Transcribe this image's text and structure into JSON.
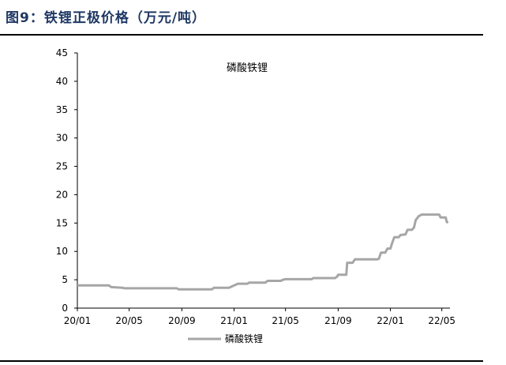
{
  "figure": {
    "title": "图9：铁锂正极价格（万元/吨）"
  },
  "chart_data": {
    "type": "line",
    "annotation": "磷酸铁锂",
    "ylim": [
      0,
      45
    ],
    "y_ticks": [
      0,
      5,
      10,
      15,
      20,
      25,
      30,
      35,
      40,
      45
    ],
    "x_tick_labels": [
      "20/01",
      "20/05",
      "20/09",
      "21/01",
      "21/05",
      "21/09",
      "22/01",
      "22/05"
    ],
    "legend": {
      "position": "bottom-left"
    },
    "grid": false,
    "series": [
      {
        "name": "磷酸铁锂",
        "color": "#a6a6a6",
        "points": [
          [
            "2020-01-01",
            4.0
          ],
          [
            "2020-03-15",
            4.0
          ],
          [
            "2020-03-20",
            3.7
          ],
          [
            "2020-04-15",
            3.6
          ],
          [
            "2020-04-20",
            3.5
          ],
          [
            "2020-08-20",
            3.5
          ],
          [
            "2020-08-25",
            3.3
          ],
          [
            "2020-11-10",
            3.3
          ],
          [
            "2020-11-15",
            3.6
          ],
          [
            "2020-12-20",
            3.6
          ],
          [
            "2021-01-01",
            4.0
          ],
          [
            "2021-01-10",
            4.3
          ],
          [
            "2021-02-01",
            4.3
          ],
          [
            "2021-02-05",
            4.5
          ],
          [
            "2021-03-15",
            4.5
          ],
          [
            "2021-03-20",
            4.8
          ],
          [
            "2021-04-20",
            4.8
          ],
          [
            "2021-04-25",
            5.0
          ],
          [
            "2021-05-01",
            5.1
          ],
          [
            "2021-07-01",
            5.1
          ],
          [
            "2021-07-05",
            5.3
          ],
          [
            "2021-08-25",
            5.3
          ],
          [
            "2021-08-30",
            5.6
          ],
          [
            "2021-09-01",
            5.9
          ],
          [
            "2021-09-20",
            5.9
          ],
          [
            "2021-09-22",
            8.0
          ],
          [
            "2021-10-05",
            8.0
          ],
          [
            "2021-10-10",
            8.6
          ],
          [
            "2021-12-01",
            8.6
          ],
          [
            "2021-12-05",
            8.7
          ],
          [
            "2021-12-10",
            9.8
          ],
          [
            "2021-12-20",
            9.8
          ],
          [
            "2021-12-25",
            10.5
          ],
          [
            "2022-01-01",
            10.5
          ],
          [
            "2022-01-05",
            11.5
          ],
          [
            "2022-01-10",
            12.5
          ],
          [
            "2022-01-20",
            12.5
          ],
          [
            "2022-01-25",
            12.9
          ],
          [
            "2022-02-05",
            13.0
          ],
          [
            "2022-02-10",
            13.8
          ],
          [
            "2022-02-20",
            13.8
          ],
          [
            "2022-02-25",
            14.2
          ],
          [
            "2022-03-01",
            15.5
          ],
          [
            "2022-03-08",
            16.2
          ],
          [
            "2022-03-15",
            16.5
          ],
          [
            "2022-04-25",
            16.5
          ],
          [
            "2022-04-28",
            16.0
          ],
          [
            "2022-05-10",
            16.0
          ],
          [
            "2022-05-12",
            15.3
          ],
          [
            "2022-05-15",
            15.0
          ]
        ]
      }
    ]
  }
}
